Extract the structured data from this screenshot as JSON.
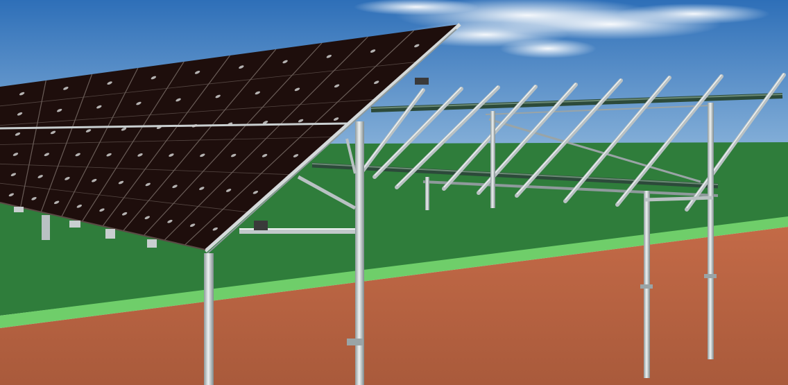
{
  "scene": {
    "subject": "ground-mounted-solar-array-with-pile-foundations",
    "colors": {
      "sky_top": "#2e6fb8",
      "sky_bottom": "#8fb7dc",
      "cloud": "#ffffff",
      "grass": "#2f7d3b",
      "grass_edge": "#6fce6a",
      "soil": "#c36a47",
      "soil_dark": "#a95a3b",
      "panel": "#1e0e0c",
      "panel_cell_line": "#6a5d58",
      "panel_highlight": "#cfcfcf",
      "steel": "#b9c1c3",
      "steel_dark": "#7e8a8c",
      "steel_light": "#eef2f2",
      "green_beam": "#2c4a3a"
    },
    "icons": [
      "cloud-icon",
      "solar-panel-array-icon",
      "mounting-rail-icon",
      "ground-pile-icon"
    ]
  }
}
